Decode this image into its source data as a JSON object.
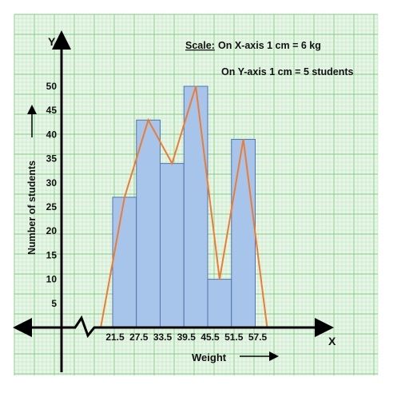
{
  "colors": {
    "paper_bg": "#e8f6e8",
    "grid_minor": "#b7e3b7",
    "grid_major": "#7fcf7f",
    "bar_fill": "#a7c4ea",
    "bar_stroke": "#4f73b0",
    "polygon": "#ee7b2f",
    "axis": "#000000"
  },
  "chart_data": {
    "type": "bar",
    "subtype": "histogram-with-frequency-polygon",
    "y_axis_name": "Y",
    "x_axis_name": "X",
    "scale_heading": "Scale:",
    "scale_x_text": "On X-axis 1 cm = 6 kg",
    "scale_y_text": "On Y-axis 1 cm = 5 students",
    "xlabel": "Weight",
    "ylabel": "Number of students",
    "xlim": [
      12,
      62
    ],
    "ylim": [
      0,
      50
    ],
    "x_ticks": [
      "21.5",
      "27.5",
      "33.5",
      "39.5",
      "45.5",
      "51.5",
      "57.5"
    ],
    "y_ticks": [
      "5",
      "10",
      "15",
      "20",
      "25",
      "30",
      "35",
      "40",
      "45",
      "50"
    ],
    "bins": [
      {
        "start": 21.5,
        "end": 27.5,
        "value": 27
      },
      {
        "start": 27.5,
        "end": 33.5,
        "value": 43
      },
      {
        "start": 33.5,
        "end": 39.5,
        "value": 34
      },
      {
        "start": 39.5,
        "end": 45.5,
        "value": 50
      },
      {
        "start": 45.5,
        "end": 51.5,
        "value": 10
      },
      {
        "start": 51.5,
        "end": 57.5,
        "value": 39
      }
    ],
    "polygon_points": [
      {
        "x": 18.5,
        "y": 0
      },
      {
        "x": 24.5,
        "y": 27
      },
      {
        "x": 30.5,
        "y": 43
      },
      {
        "x": 36.5,
        "y": 34
      },
      {
        "x": 42.5,
        "y": 50
      },
      {
        "x": 48.5,
        "y": 10
      },
      {
        "x": 54.5,
        "y": 39
      },
      {
        "x": 60.5,
        "y": 0
      }
    ],
    "grid": true
  }
}
